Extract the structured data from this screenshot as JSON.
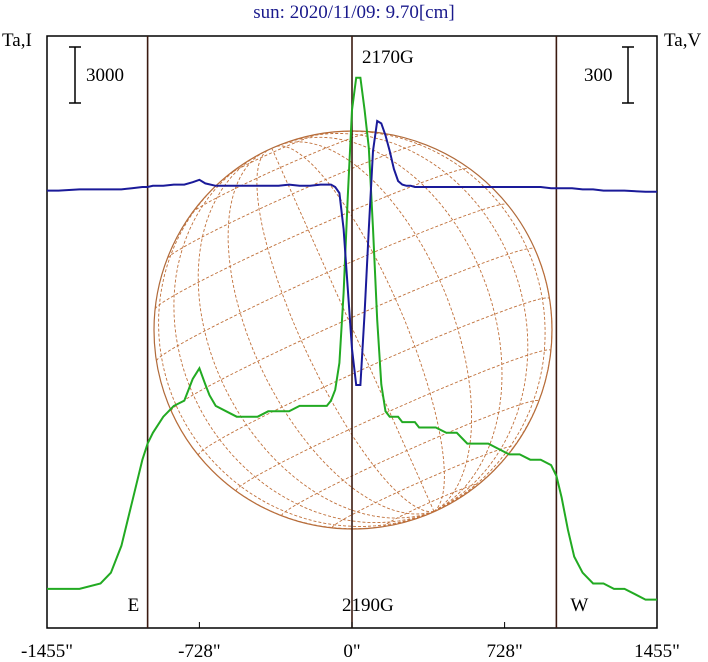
{
  "chart_data": {
    "type": "line",
    "title": "sun: 2020/11/09: 9.70[cm]",
    "ylabel_left": "Ta,I",
    "ylabel_right": "Ta,V",
    "scalebar_left": "3000",
    "scalebar_right": "300",
    "xlim": [
      -1455,
      1455
    ],
    "x_ticks": [
      {
        "value": -1455,
        "label": "-1455\""
      },
      {
        "value": -728,
        "label": "-728\""
      },
      {
        "value": 0,
        "label": "0\""
      },
      {
        "value": 728,
        "label": "728\""
      },
      {
        "value": 1455,
        "label": "1455\""
      }
    ],
    "limb_lines": [
      {
        "value": -975,
        "label": "E"
      },
      {
        "value": 0,
        "label": ""
      },
      {
        "value": 975,
        "label": "W"
      }
    ],
    "annotations": [
      {
        "text": "2170G"
      },
      {
        "text": "2190G"
      }
    ],
    "series": [
      {
        "key": "I",
        "color": "#22aa22",
        "x": [
          -1455,
          -1300,
          -1200,
          -1150,
          -1100,
          -1050,
          -1000,
          -975,
          -950,
          -900,
          -850,
          -800,
          -760,
          -728,
          -700,
          -680,
          -650,
          -600,
          -550,
          -500,
          -450,
          -400,
          -350,
          -300,
          -250,
          -200,
          -150,
          -120,
          -100,
          -80,
          -60,
          -40,
          -20,
          0,
          20,
          40,
          60,
          80,
          100,
          120,
          140,
          160,
          180,
          200,
          220,
          240,
          260,
          280,
          300,
          320,
          350,
          400,
          450,
          500,
          550,
          600,
          650,
          700,
          750,
          800,
          850,
          900,
          950,
          975,
          1000,
          1030,
          1060,
          1100,
          1150,
          1200,
          1250,
          1300,
          1350,
          1400,
          1455
        ],
        "y": [
          0.03,
          0.03,
          0.04,
          0.06,
          0.11,
          0.19,
          0.27,
          0.3,
          0.32,
          0.35,
          0.37,
          0.38,
          0.42,
          0.44,
          0.41,
          0.39,
          0.37,
          0.36,
          0.35,
          0.35,
          0.35,
          0.36,
          0.36,
          0.36,
          0.37,
          0.37,
          0.37,
          0.37,
          0.38,
          0.4,
          0.45,
          0.58,
          0.76,
          0.92,
          0.98,
          0.98,
          0.92,
          0.85,
          0.7,
          0.53,
          0.41,
          0.36,
          0.35,
          0.35,
          0.35,
          0.34,
          0.34,
          0.34,
          0.34,
          0.33,
          0.33,
          0.33,
          0.32,
          0.32,
          0.3,
          0.3,
          0.3,
          0.29,
          0.28,
          0.28,
          0.27,
          0.27,
          0.26,
          0.24,
          0.2,
          0.14,
          0.09,
          0.06,
          0.04,
          0.04,
          0.03,
          0.03,
          0.02,
          0.01,
          0.01
        ]
      },
      {
        "key": "V",
        "color": "#1a1a99",
        "x": [
          -1455,
          -1400,
          -1300,
          -1200,
          -1100,
          -1050,
          -1000,
          -975,
          -950,
          -900,
          -850,
          -800,
          -760,
          -728,
          -700,
          -650,
          -600,
          -500,
          -400,
          -350,
          -300,
          -250,
          -200,
          -150,
          -100,
          -80,
          -60,
          -40,
          -20,
          0,
          20,
          40,
          60,
          80,
          100,
          120,
          140,
          160,
          180,
          200,
          220,
          240,
          260,
          280,
          300,
          320,
          350,
          400,
          450,
          500,
          550,
          600,
          650,
          700,
          750,
          800,
          900,
          950,
          975,
          1000,
          1050,
          1100,
          1150,
          1200,
          1300,
          1400,
          1455
        ],
        "y": [
          0.02,
          0.02,
          0.03,
          0.03,
          0.03,
          0.04,
          0.05,
          0.05,
          0.06,
          0.06,
          0.07,
          0.07,
          0.09,
          0.11,
          0.08,
          0.06,
          0.06,
          0.06,
          0.06,
          0.06,
          0.07,
          0.06,
          0.06,
          0.07,
          0.07,
          0.05,
          0.0,
          -0.3,
          -0.8,
          -1.3,
          -1.6,
          -1.6,
          -1.0,
          -0.3,
          0.35,
          0.6,
          0.58,
          0.48,
          0.35,
          0.2,
          0.1,
          0.07,
          0.06,
          0.06,
          0.05,
          0.05,
          0.05,
          0.05,
          0.05,
          0.05,
          0.05,
          0.05,
          0.05,
          0.05,
          0.05,
          0.05,
          0.05,
          0.04,
          0.04,
          0.04,
          0.04,
          0.03,
          0.03,
          0.02,
          0.02,
          0.01,
          0.01
        ]
      }
    ],
    "grid": "heliographic"
  }
}
